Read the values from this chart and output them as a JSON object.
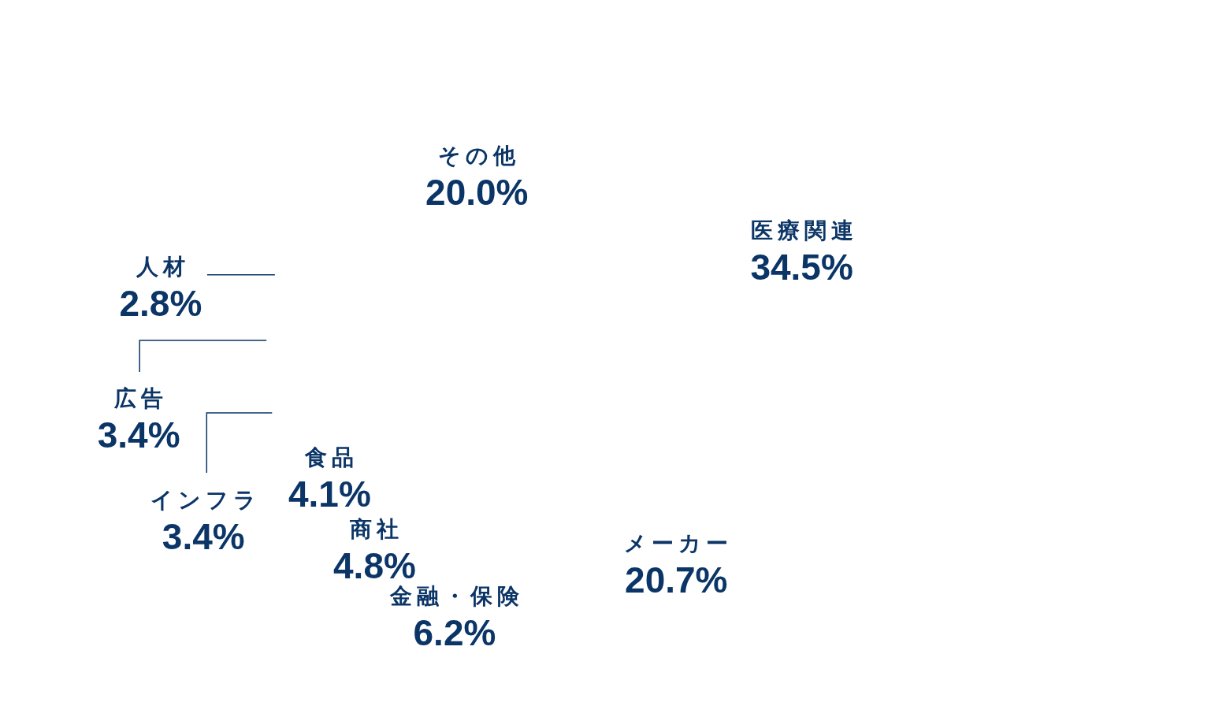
{
  "chart_data": {
    "type": "other",
    "categories": [
      "医療関連",
      "メーカー",
      "金融・保険",
      "商社",
      "食品",
      "インフラ",
      "広告",
      "人材",
      "その他"
    ],
    "values": [
      34.5,
      20.7,
      6.2,
      4.8,
      4.1,
      3.4,
      3.4,
      2.8,
      20.0
    ],
    "value_labels": [
      "34.5%",
      "20.7%",
      "6.2%",
      "4.8%",
      "4.1%",
      "3.4%",
      "3.4%",
      "2.8%",
      "20.0%"
    ]
  }
}
